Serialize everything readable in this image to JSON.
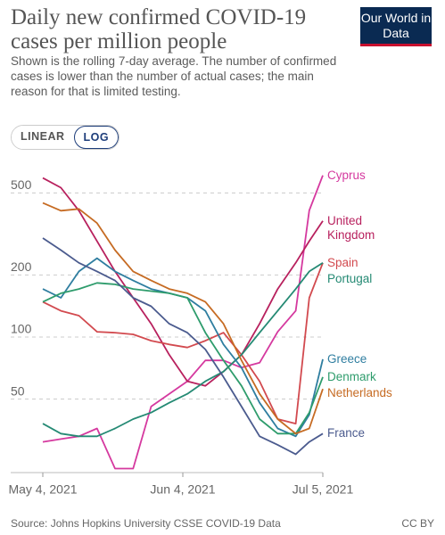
{
  "logo": "Our World in Data",
  "controls": [
    "LINEAR",
    "LOG"
  ],
  "source": "Source: Johns Hopkins University CSSE COVID-19 Data",
  "license": "CC BY",
  "chart_data": {
    "type": "line",
    "title": "Daily new confirmed COVID-19 cases per million people",
    "subtitle": "Shown is the rolling 7-day average. The number of confirmed cases is lower than the number of actual cases; the main reason for that is limited testing.",
    "log_scale": true,
    "grid": true,
    "x": [
      "2021-05-04",
      "2021-05-08",
      "2021-05-12",
      "2021-05-16",
      "2021-05-20",
      "2021-05-24",
      "2021-05-28",
      "2021-06-01",
      "2021-06-05",
      "2021-06-09",
      "2021-06-13",
      "2021-06-17",
      "2021-06-21",
      "2021-06-25",
      "2021-06-29",
      "2021-07-02",
      "2021-07-05"
    ],
    "xlim": [
      "2021-05-04",
      "2021-07-05"
    ],
    "xticks": [
      {
        "value": "2021-05-04",
        "label": "May 4, 2021"
      },
      {
        "value": "2021-06-04",
        "label": "Jun 4, 2021"
      },
      {
        "value": "2021-07-05",
        "label": "Jul 5, 2021"
      }
    ],
    "ylim": [
      22,
      650
    ],
    "yticks": [
      50,
      100,
      200,
      500
    ],
    "series": [
      {
        "name": "Cyprus",
        "color": "#d5399f",
        "values": [
          31,
          32,
          33,
          36,
          23,
          23,
          46,
          53,
          61,
          77,
          77,
          71,
          75,
          106,
          134,
          411,
          608
        ]
      },
      {
        "name": "United Kingdom",
        "color": "#b8215e",
        "values": [
          591,
          530,
          410,
          292,
          208,
          155,
          116,
          82,
          61,
          58,
          68,
          82,
          116,
          171,
          229,
          292,
          366
        ]
      },
      {
        "name": "Spain",
        "color": "#d24a4f",
        "values": [
          148,
          134,
          127,
          106,
          105,
          103,
          96,
          92,
          89,
          96,
          105,
          82,
          61,
          40,
          38,
          155,
          229
        ]
      },
      {
        "name": "Portugal",
        "color": "#258a74",
        "values": [
          38,
          34,
          33,
          33,
          36,
          40,
          43,
          48,
          53,
          61,
          68,
          82,
          105,
          134,
          171,
          208,
          229
        ]
      },
      {
        "name": "Greece",
        "color": "#2f7ea0",
        "values": [
          171,
          155,
          208,
          241,
          208,
          188,
          171,
          163,
          155,
          134,
          92,
          71,
          48,
          36,
          33,
          42,
          78
        ]
      },
      {
        "name": "Denmark",
        "color": "#2e9c6c",
        "values": [
          148,
          163,
          171,
          183,
          180,
          171,
          167,
          163,
          155,
          105,
          77,
          58,
          40,
          34,
          34,
          43,
          64
        ]
      },
      {
        "name": "Netherlands",
        "color": "#c66b23",
        "values": [
          447,
          410,
          418,
          357,
          264,
          208,
          188,
          171,
          163,
          148,
          116,
          77,
          53,
          40,
          34,
          36,
          56
        ]
      },
      {
        "name": "France",
        "color": "#4b5b8e",
        "values": [
          302,
          264,
          229,
          208,
          188,
          155,
          141,
          116,
          105,
          87,
          64,
          46,
          33,
          30,
          27,
          31,
          34
        ]
      }
    ]
  }
}
